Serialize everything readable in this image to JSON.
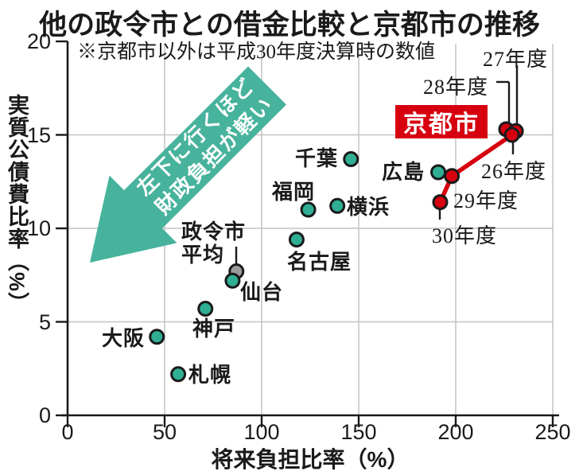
{
  "title": "他の政令市との借金比較と京都市の推移",
  "note": "※京都市以外は平成30年度決算時の数値",
  "arrow": {
    "line1": "左下に行くほど",
    "line2": "財政負担が軽い"
  },
  "colors": {
    "teal_dot": "#2fae93",
    "arrow_fill": "#47b39c",
    "red": "#d7000f",
    "gray_dot": "#9b9b9b",
    "grid": "#c4c4c4",
    "ink": "#1a1a1a"
  },
  "chart_data": {
    "type": "scatter",
    "title": "他の政令市との借金比較と京都市の推移",
    "xlabel": "将来負担比率（%）",
    "ylabel": "実質公債費比率（%）",
    "xlim": [
      0,
      250
    ],
    "ylim": [
      0,
      20
    ],
    "x_ticks": [
      0,
      50,
      100,
      150,
      200,
      250
    ],
    "y_ticks": [
      0,
      5,
      10,
      15,
      20
    ],
    "grid": true,
    "cities": [
      {
        "id": "chiba",
        "label": "千葉",
        "x": 146,
        "y": 13.7,
        "color": "teal"
      },
      {
        "id": "fukuoka",
        "label": "福岡",
        "x": 124,
        "y": 11.0,
        "color": "teal"
      },
      {
        "id": "yokohama",
        "label": "横浜",
        "x": 139,
        "y": 11.2,
        "color": "teal"
      },
      {
        "id": "nagoya",
        "label": "名古屋",
        "x": 118,
        "y": 9.4,
        "color": "teal"
      },
      {
        "id": "hiroshima",
        "label": "広島",
        "x": 191,
        "y": 13.0,
        "color": "teal"
      },
      {
        "id": "kobe",
        "label": "神戸",
        "x": 71,
        "y": 5.7,
        "color": "teal"
      },
      {
        "id": "osaka",
        "label": "大阪",
        "x": 46,
        "y": 4.2,
        "color": "teal"
      },
      {
        "id": "sapporo",
        "label": "札幌",
        "x": 57,
        "y": 2.2,
        "color": "teal"
      },
      {
        "id": "heikin",
        "label": "政令市\n平均",
        "x": 87,
        "y": 7.7,
        "color": "gray"
      },
      {
        "id": "sendai",
        "label": "仙台",
        "x": 85,
        "y": 7.2,
        "color": "teal"
      }
    ],
    "kyoto_series": {
      "name": "京都市",
      "color": "#d7000f",
      "points": [
        {
          "id": "h28",
          "label": "28年度",
          "x": 226,
          "y": 15.3
        },
        {
          "id": "h27",
          "label": "27年度",
          "x": 231,
          "y": 15.2
        },
        {
          "id": "h26",
          "label": "26年度",
          "x": 229,
          "y": 15.0
        },
        {
          "id": "h29",
          "label": "29年度",
          "x": 198,
          "y": 12.8
        },
        {
          "id": "h30",
          "label": "30年度",
          "x": 192,
          "y": 11.4
        }
      ]
    }
  }
}
